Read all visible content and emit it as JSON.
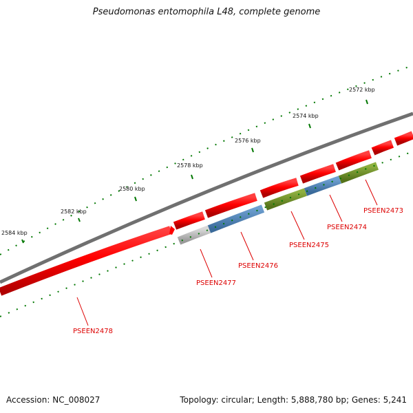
{
  "title": "Pseudomonas entomophila L48, complete genome",
  "footer": {
    "accession": "Accession: NC_008027",
    "summary": "Topology: circular; Length: 5,888,780 bp; Genes: 5,241"
  },
  "scale_labels": [
    "2584 kbp",
    "2582 kbp",
    "2580 kbp",
    "2578 kbp",
    "2576 kbp",
    "2574 kbp",
    "2572 kbp"
  ],
  "genes": [
    {
      "id": "PSEEN2478",
      "label": "PSEEN2478"
    },
    {
      "id": "PSEEN2477",
      "label": "PSEEN2477"
    },
    {
      "id": "PSEEN2476",
      "label": "PSEEN2476"
    },
    {
      "id": "PSEEN2475",
      "label": "PSEEN2475"
    },
    {
      "id": "PSEEN2474",
      "label": "PSEEN2474"
    },
    {
      "id": "PSEEN2473",
      "label": "PSEEN2473"
    }
  ],
  "colors": {
    "backbone": "#707070",
    "forward_gene": "#ff0000",
    "reverse_gray": "#b0b0b0",
    "reverse_blue": "#4a7fb5",
    "reverse_green": "#6b8e23",
    "tick": "#007700",
    "gene_label": "#dd0000"
  }
}
